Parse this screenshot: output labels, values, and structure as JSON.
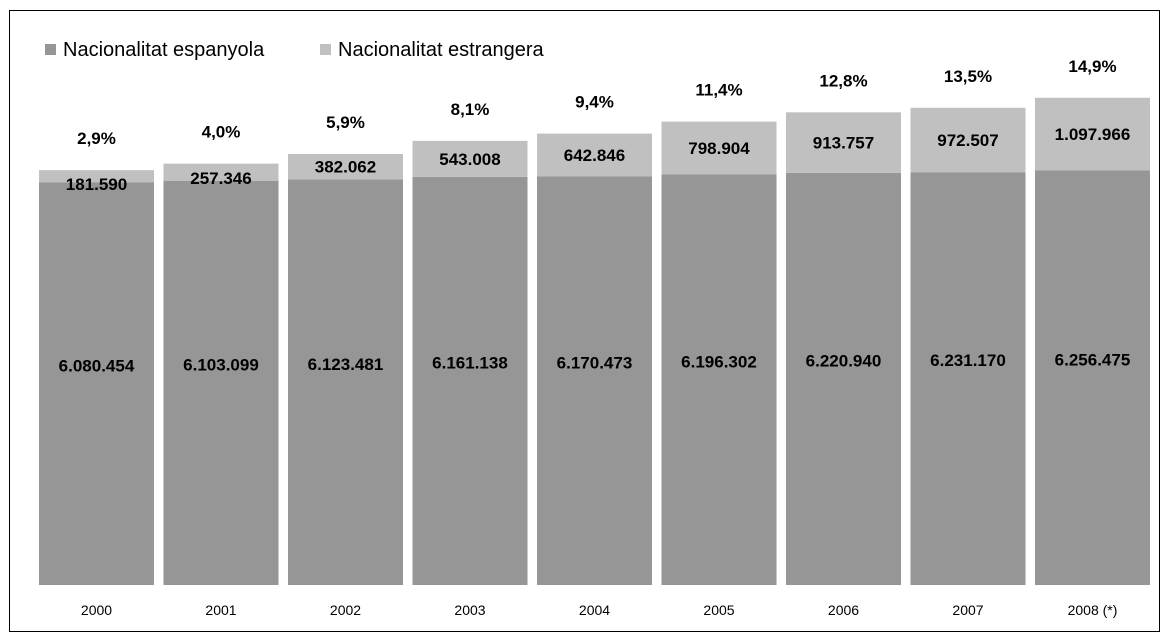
{
  "chart_data": {
    "type": "bar",
    "stacked": true,
    "categories": [
      "2000",
      "2001",
      "2002",
      "2003",
      "2004",
      "2005",
      "2006",
      "2007",
      "2008 (*)"
    ],
    "series": [
      {
        "name": "Nacionalitat espanyola",
        "color": "#969696",
        "values": [
          6080454,
          6103099,
          6123481,
          6161138,
          6170473,
          6196302,
          6220940,
          6231170,
          6256475
        ],
        "labels": [
          "6.080.454",
          "6.103.099",
          "6.123.481",
          "6.161.138",
          "6.170.473",
          "6.196.302",
          "6.220.940",
          "6.231.170",
          "6.256.475"
        ]
      },
      {
        "name": "Nacionalitat estrangera",
        "color": "#c0c0c0",
        "values": [
          181590,
          257346,
          382062,
          543008,
          642846,
          798904,
          913757,
          972507,
          1097966
        ],
        "labels": [
          "181.590",
          "257.346",
          "382.062",
          "543.008",
          "642.846",
          "798.904",
          "913.757",
          "972.507",
          "1.097.966"
        ]
      }
    ],
    "percent_labels": [
      "2,9%",
      "4,0%",
      "5,9%",
      "8,1%",
      "9,4%",
      "11,4%",
      "12,8%",
      "13,5%",
      "14,9%"
    ],
    "legend_position": "top-left",
    "grid": false,
    "ylim": [
      0,
      8000000
    ]
  }
}
